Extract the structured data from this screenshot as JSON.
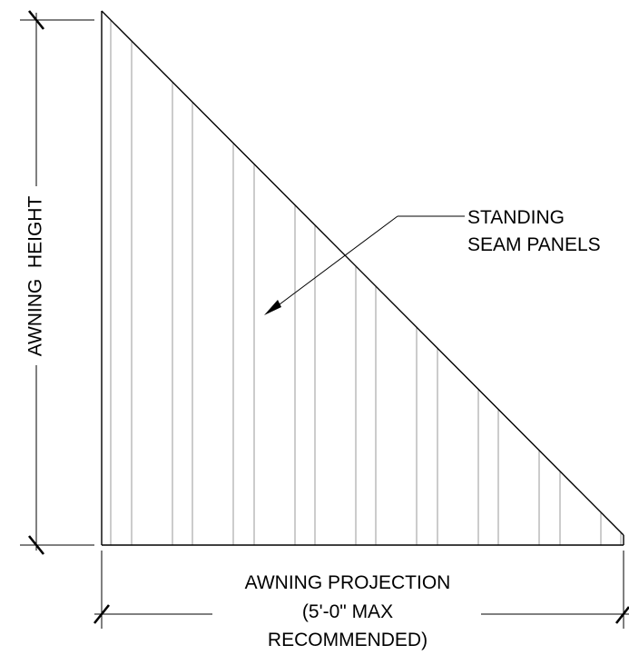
{
  "labels": {
    "height": "AWNING  HEIGHT",
    "projection": "AWNING PROJECTION",
    "projection_note_1": "(5'-0\" MAX",
    "projection_note_2": "RECOMMENDED)",
    "callout_1": "STANDING",
    "callout_2": "SEAM PANELS"
  }
}
